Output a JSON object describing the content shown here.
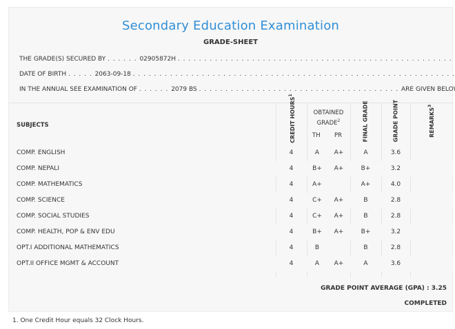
{
  "title": "Secondary Education Examination",
  "subtitle": "GRADE-SHEET",
  "info": {
    "secured_label": "THE GRADE(S) SECURED BY",
    "symbol_no": "02905872H",
    "dob_label": "DATE OF BIRTH",
    "dob": "2063-09-18",
    "exam_label": "IN THE ANNUAL SEE EXAMINATION OF",
    "exam_year": "2079 BS",
    "given_below": "ARE GIVEN BELOW . . ."
  },
  "headers": {
    "subjects": "SUBJECTS",
    "credit_hours": "CREDIT HOURS",
    "credit_sup": "1",
    "obtained_grade": "OBTAINED",
    "obtained_grade2": "GRADE",
    "grade_sup": "2",
    "th": "TH",
    "pr": "PR",
    "final_grade": "FINAL GRADE",
    "grade_point": "GRADE POINT",
    "remarks": "REMARKS",
    "remarks_sup": "3"
  },
  "rows": [
    {
      "subject": "COMP. ENGLISH",
      "credit": "4",
      "th": "A",
      "pr": "A+",
      "final": "A",
      "gp": "3.6"
    },
    {
      "subject": "COMP. NEPALI",
      "credit": "4",
      "th": "B+",
      "pr": "A+",
      "final": "B+",
      "gp": "3.2"
    },
    {
      "subject": "COMP. MATHEMATICS",
      "credit": "4",
      "th": "A+",
      "pr": "",
      "final": "A+",
      "gp": "4.0"
    },
    {
      "subject": "COMP. SCIENCE",
      "credit": "4",
      "th": "C+",
      "pr": "A+",
      "final": "B",
      "gp": "2.8"
    },
    {
      "subject": "COMP. SOCIAL STUDIES",
      "credit": "4",
      "th": "C+",
      "pr": "A+",
      "final": "B",
      "gp": "2.8"
    },
    {
      "subject": "COMP. HEALTH, POP & ENV EDU",
      "credit": "4",
      "th": "B+",
      "pr": "A+",
      "final": "B+",
      "gp": "3.2"
    },
    {
      "subject": "OPT.I ADDITIONAL MATHEMATICS",
      "credit": "4",
      "th": "B",
      "pr": "",
      "final": "B",
      "gp": "2.8"
    },
    {
      "subject": "OPT.II OFFICE MGMT & ACCOUNT",
      "credit": "4",
      "th": "A",
      "pr": "A+",
      "final": "A",
      "gp": "3.6"
    }
  ],
  "gpa_text": "GRADE POINT AVERAGE (GPA) : 3.25",
  "status": "COMPLETED",
  "footnote": "1. One Credit Hour equals 32 Clock Hours."
}
